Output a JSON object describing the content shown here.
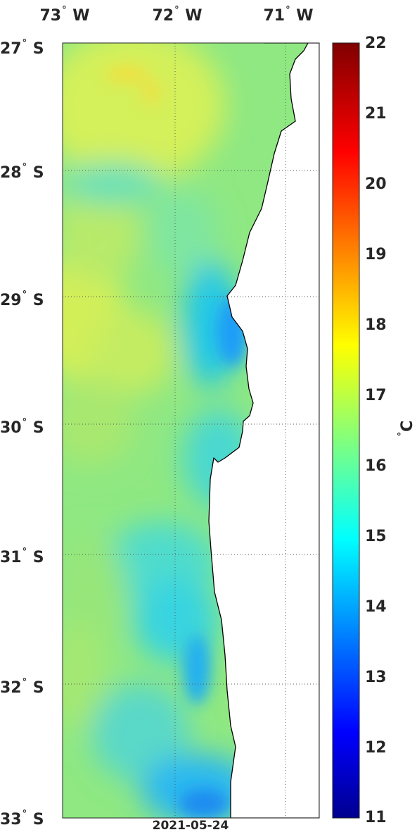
{
  "title_date": "2021-05-24",
  "longitude_labels": [
    {
      "deg": "73",
      "hemi": "W"
    },
    {
      "deg": "72",
      "hemi": "W"
    },
    {
      "deg": "71",
      "hemi": "W"
    }
  ],
  "latitude_labels": [
    {
      "deg": "27",
      "hemi": "S"
    },
    {
      "deg": "28",
      "hemi": "S"
    },
    {
      "deg": "29",
      "hemi": "S"
    },
    {
      "deg": "30",
      "hemi": "S"
    },
    {
      "deg": "31",
      "hemi": "S"
    },
    {
      "deg": "32",
      "hemi": "S"
    },
    {
      "deg": "33",
      "hemi": "S"
    }
  ],
  "colorbar": {
    "unit_symbol": "°",
    "unit": "C",
    "min": 11,
    "max": 22,
    "ticks": [
      "22",
      "21",
      "20",
      "19",
      "18",
      "17",
      "16",
      "15",
      "14",
      "13",
      "12",
      "11"
    ],
    "colormap": "jet"
  },
  "map": {
    "variable": "sea surface temperature",
    "lon_range": [
      -73,
      -70.7
    ],
    "lat_range": [
      -33,
      -27
    ],
    "land_color": "#ffffff",
    "coastline_color": "#000000",
    "grid": "dotted"
  }
}
